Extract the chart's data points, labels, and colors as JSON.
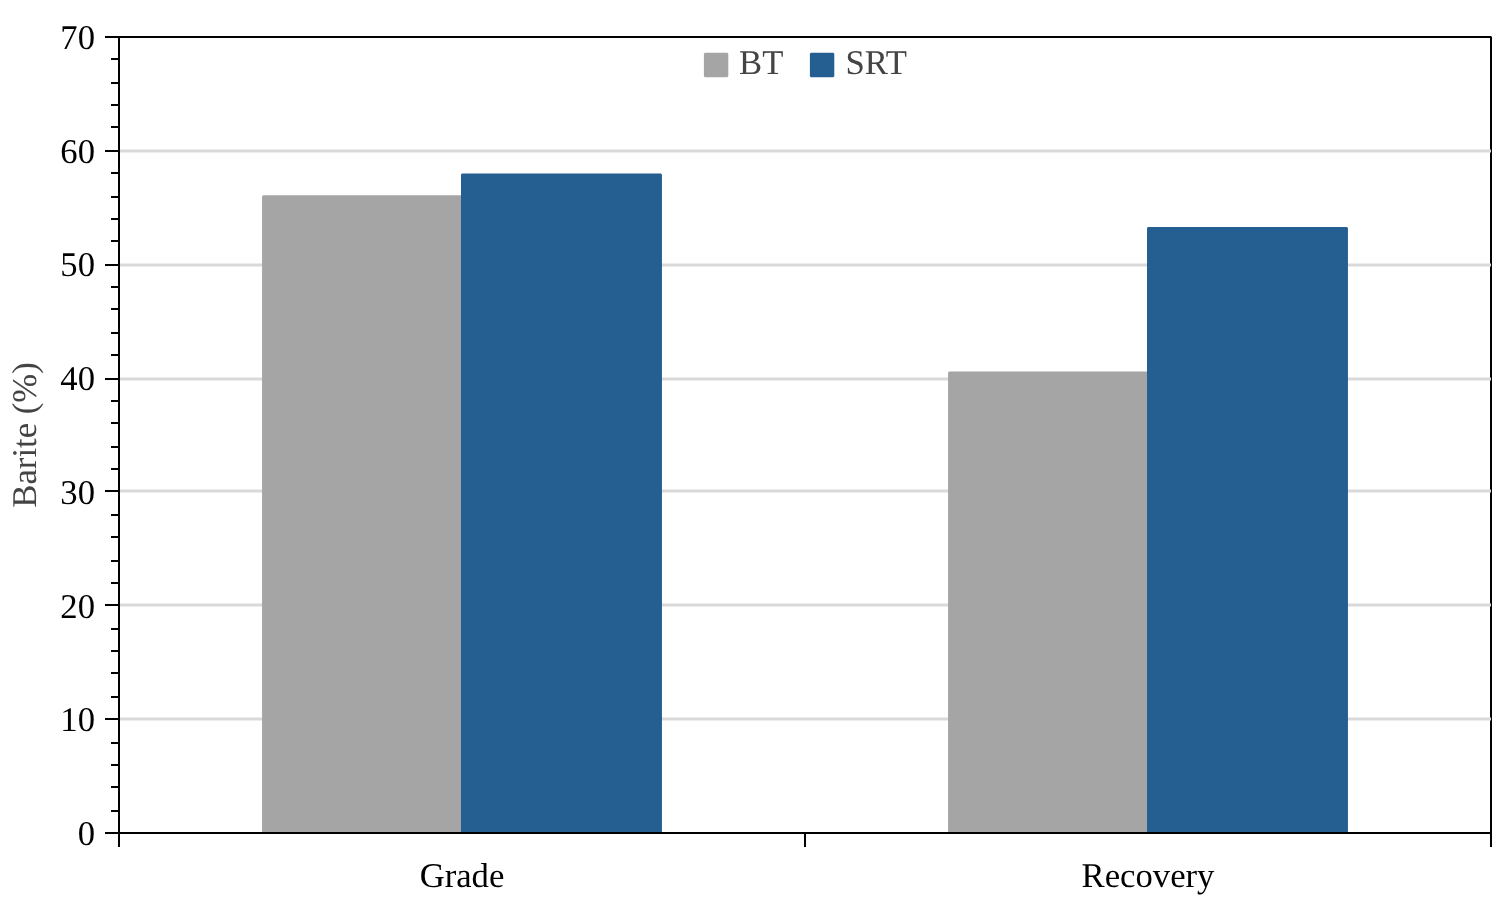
{
  "chart_data": {
    "type": "bar",
    "ylabel": "Barite (%)",
    "categories": [
      "Grade",
      "Recovery"
    ],
    "series": [
      {
        "name": "BT",
        "color": "#a5a5a5",
        "values": [
          56.0,
          40.5
        ]
      },
      {
        "name": "SRT",
        "color": "#255e91",
        "values": [
          57.9,
          53.2
        ]
      }
    ],
    "ylim": [
      0,
      70
    ],
    "yticks": [
      0,
      10,
      20,
      30,
      40,
      50,
      60,
      70
    ],
    "grid": "y",
    "legend": "top"
  }
}
